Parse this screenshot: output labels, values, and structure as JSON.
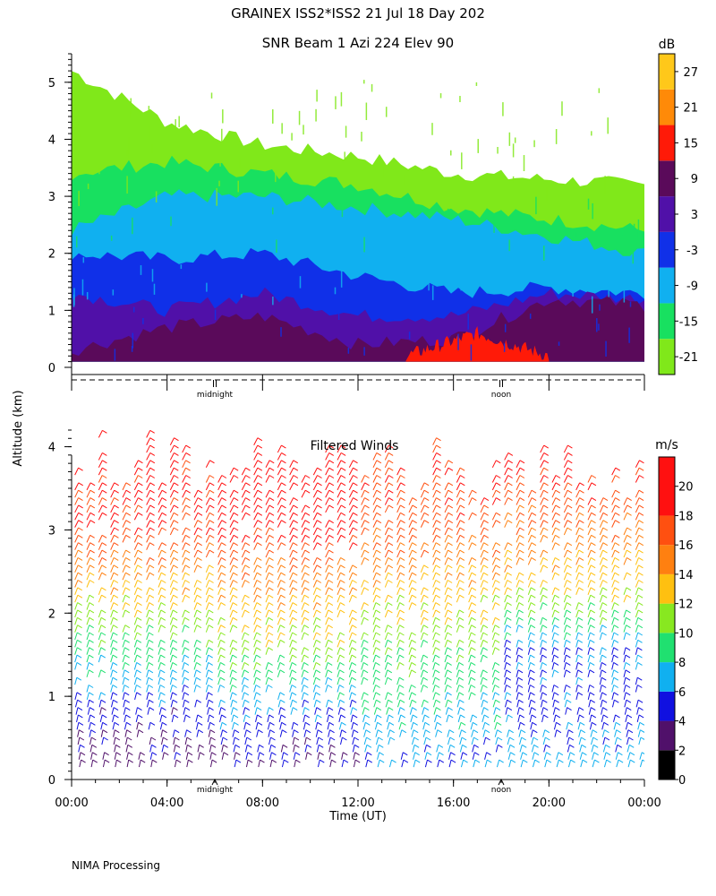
{
  "header": {
    "title": "GRAINEX ISS2*ISS2  21 Jul 18 Day 202"
  },
  "footer": {
    "credit": "NIMA Processing"
  },
  "chart_data": [
    {
      "type": "heatmap",
      "title": "SNR Beam 1 Azi 224 Elev 90",
      "ylabel": "Altitude (km)",
      "ylim": [
        0,
        5.5
      ],
      "yticks": [
        "0",
        "1",
        "2",
        "3",
        "4",
        "5"
      ],
      "x_markers": [
        "midnight",
        "noon"
      ],
      "colorbar": {
        "unit": "dB",
        "ticks": [
          "-21",
          "-15",
          "-9",
          "-3",
          "3",
          "9",
          "15",
          "21",
          "27"
        ],
        "bands": [
          {
            "from": -24,
            "to": -18,
            "color": "#80e81a"
          },
          {
            "from": -18,
            "to": -12,
            "color": "#18e060"
          },
          {
            "from": -12,
            "to": -6,
            "color": "#10b0f0"
          },
          {
            "from": -6,
            "to": 0,
            "color": "#1030e8"
          },
          {
            "from": 0,
            "to": 6,
            "color": "#5010a8"
          },
          {
            "from": 6,
            "to": 12,
            "color": "#5a0a5a"
          },
          {
            "from": 12,
            "to": 18,
            "color": "#ff1a08"
          },
          {
            "from": 18,
            "to": 24,
            "color": "#ff8a08"
          },
          {
            "from": 24,
            "to": 30,
            "color": "#ffc81a"
          }
        ]
      },
      "layers_km": [
        {
          "level": "-21",
          "bottom": [
            0.1,
            0.1,
            0.1,
            0.1,
            0.1,
            0.1,
            0.1
          ],
          "top": [
            5.2,
            4.3,
            3.9,
            3.7,
            3.4,
            3.3,
            3.2
          ],
          "x_hours": [
            0,
            4,
            8,
            12,
            16,
            20,
            24
          ]
        },
        {
          "level": "-15",
          "bottom": [
            0.1,
            0.1,
            0.1,
            0.1,
            0.1,
            0.1,
            0.1
          ],
          "top": [
            3.4,
            3.6,
            3.4,
            3.2,
            2.8,
            2.6,
            2.4
          ],
          "x_hours": [
            0,
            4,
            8,
            12,
            16,
            20,
            24
          ]
        },
        {
          "level": "-9",
          "bottom": [
            0.1,
            0.1,
            0.1,
            0.1,
            0.1,
            0.1,
            0.1
          ],
          "top": [
            2.4,
            3.0,
            3.0,
            2.8,
            2.6,
            2.3,
            2.0
          ],
          "x_hours": [
            0,
            4,
            8,
            12,
            16,
            20,
            24
          ]
        },
        {
          "level": "-3",
          "bottom": [
            0.1,
            0.1,
            0.1,
            0.1,
            0.1,
            0.1,
            0.1
          ],
          "top": [
            2.0,
            1.9,
            2.0,
            1.6,
            1.3,
            1.4,
            1.3
          ],
          "x_hours": [
            0,
            4,
            8,
            12,
            16,
            20,
            24
          ]
        },
        {
          "level": "3",
          "bottom": [
            0.1,
            0.1,
            0.1,
            0.1,
            0.1,
            0.1,
            0.1
          ],
          "top": [
            1.3,
            1.0,
            1.3,
            0.9,
            0.9,
            1.3,
            1.2
          ],
          "x_hours": [
            0,
            4,
            8,
            12,
            16,
            20,
            24
          ]
        },
        {
          "level": "9",
          "bottom": [
            0.1,
            0.1,
            0.1,
            0.1,
            0.1,
            0.1,
            0.1
          ],
          "top": [
            0.3,
            0.7,
            0.9,
            0.4,
            0.5,
            1.2,
            1.1
          ],
          "x_hours": [
            0,
            4,
            8,
            12,
            16,
            20,
            24
          ]
        },
        {
          "level": "15",
          "bottom": [
            0.1,
            0.1,
            0.1
          ],
          "top": [
            0.2,
            0.6,
            0.2
          ],
          "x_hours": [
            14,
            17,
            20
          ]
        }
      ]
    },
    {
      "type": "scatter",
      "title": "Filtered Winds",
      "xlabel": "Time (UT)",
      "xlim": [
        0,
        24
      ],
      "xticks": [
        "00:00",
        "04:00",
        "08:00",
        "12:00",
        "16:00",
        "20:00",
        "00:00"
      ],
      "ylim": [
        0,
        4.2
      ],
      "yticks": [
        "0",
        "1",
        "2",
        "3",
        "4"
      ],
      "x_markers": [
        "midnight",
        "noon"
      ],
      "colorbar": {
        "unit": "m/s",
        "ticks": [
          "0",
          "2",
          "4",
          "6",
          "8",
          "10",
          "12",
          "14",
          "16",
          "18",
          "20"
        ],
        "bands": [
          {
            "from": 0,
            "to": 2,
            "color": "#000000"
          },
          {
            "from": 2,
            "to": 4,
            "color": "#50106a"
          },
          {
            "from": 4,
            "to": 6,
            "color": "#1010e0"
          },
          {
            "from": 6,
            "to": 8,
            "color": "#10b0f0"
          },
          {
            "from": 8,
            "to": 10,
            "color": "#20e070"
          },
          {
            "from": 10,
            "to": 12,
            "color": "#88e820"
          },
          {
            "from": 12,
            "to": 14,
            "color": "#ffc010"
          },
          {
            "from": 14,
            "to": 16,
            "color": "#ff8010"
          },
          {
            "from": 16,
            "to": 18,
            "color": "#ff5010"
          },
          {
            "from": 18,
            "to": 22,
            "color": "#ff1010"
          }
        ]
      },
      "profiles_hours": [
        0.25,
        0.75,
        1.25,
        1.75,
        2.25,
        2.75,
        3.25,
        3.75,
        4.25,
        4.75,
        5.25,
        5.75,
        6.25,
        6.75,
        7.25,
        7.75,
        8.25,
        8.75,
        9.25,
        9.75,
        10.25,
        10.75,
        11.25,
        11.75,
        12.25,
        12.75,
        13.25,
        13.75,
        14.25,
        14.75,
        15.25,
        15.75,
        16.25,
        16.75,
        17.25,
        17.75,
        18.25,
        18.75,
        19.25,
        19.75,
        20.25,
        20.75,
        21.25,
        21.75,
        22.25,
        22.75,
        23.25,
        23.75
      ],
      "speed_profile_ms": [
        {
          "alt_km": 0.2,
          "speed": [
            3,
            4,
            6,
            7
          ]
        },
        {
          "alt_km": 0.8,
          "speed": [
            5,
            6,
            8,
            5
          ]
        },
        {
          "alt_km": 1.5,
          "speed": [
            9,
            11,
            10,
            6
          ]
        },
        {
          "alt_km": 2.2,
          "speed": [
            13,
            14,
            13,
            12
          ]
        },
        {
          "alt_km": 3.0,
          "speed": [
            18,
            19,
            17,
            16
          ]
        },
        {
          "alt_km": 3.8,
          "speed": [
            19,
            20,
            18,
            19
          ]
        }
      ]
    }
  ]
}
